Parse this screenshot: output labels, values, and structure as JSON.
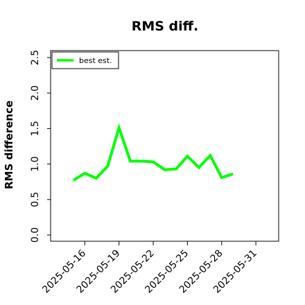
{
  "chart_data": {
    "type": "line",
    "title": "RMS diff.",
    "xlabel": "",
    "ylabel": "RMS difference",
    "ylim": [
      0.0,
      2.5
    ],
    "yticks": [
      "0.0",
      "0.5",
      "1.0",
      "1.5",
      "2.0",
      "2.5"
    ],
    "xlim": [
      "2025-05-13",
      "2025-06-02"
    ],
    "xticks": [
      "2025-05-16",
      "2025-05-19",
      "2025-05-22",
      "2025-05-25",
      "2025-05-28",
      "2025-05-31"
    ],
    "grid": false,
    "legend_position": "top-left",
    "series": [
      {
        "name": "best est.",
        "color": "#00ff00",
        "x": [
          "2025-05-15",
          "2025-05-16",
          "2025-05-17",
          "2025-05-18",
          "2025-05-19",
          "2025-05-20",
          "2025-05-21",
          "2025-05-22",
          "2025-05-23",
          "2025-05-24",
          "2025-05-25",
          "2025-05-26",
          "2025-05-27",
          "2025-05-28",
          "2025-05-29"
        ],
        "y": [
          0.77,
          0.87,
          0.8,
          0.97,
          1.51,
          1.04,
          1.04,
          1.03,
          0.92,
          0.93,
          1.11,
          0.95,
          1.12,
          0.81,
          0.86
        ]
      }
    ]
  }
}
